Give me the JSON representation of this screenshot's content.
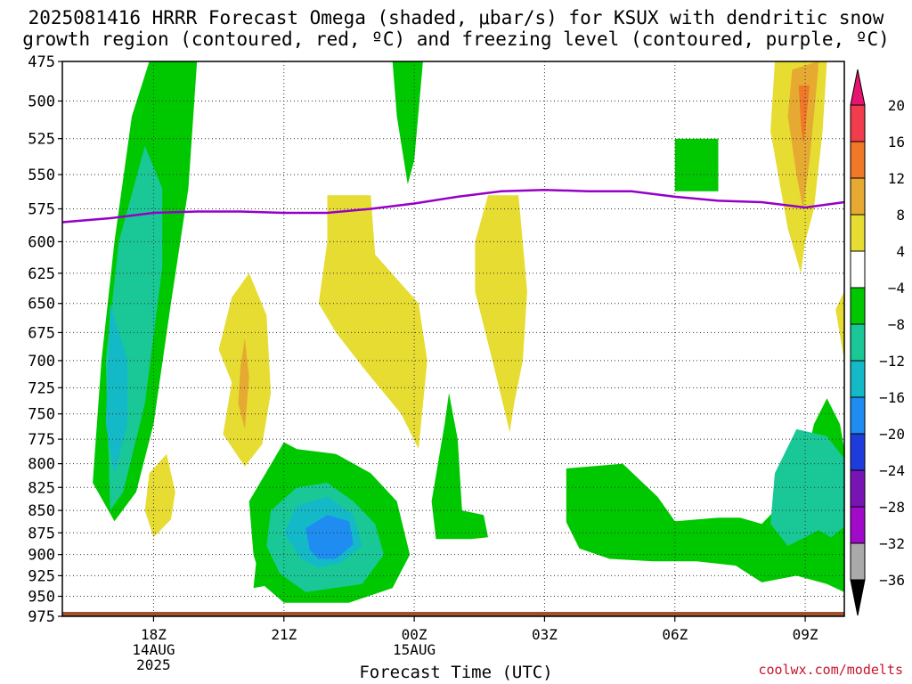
{
  "header": {
    "title_line1": "2025081416 HRRR Forecast Omega (shaded, μbar/s) for KSUX with dendritic snow",
    "title_line2": "growth region (contoured, red, ºC) and freezing level (contoured, purple, ºC)"
  },
  "footer": {
    "credit": "coolwx.com/modelts"
  },
  "chart_data": {
    "type": "heatmap",
    "xlabel": "Forecast Time (UTC)",
    "ylabel": "",
    "x_ticks": [
      {
        "hour": 2,
        "lines": [
          "18Z",
          "14AUG",
          "2025"
        ]
      },
      {
        "hour": 5,
        "lines": [
          "21Z"
        ]
      },
      {
        "hour": 8,
        "lines": [
          "00Z",
          "15AUG"
        ]
      },
      {
        "hour": 11,
        "lines": [
          "03Z"
        ]
      },
      {
        "hour": 14,
        "lines": [
          "06Z"
        ]
      },
      {
        "hour": 17,
        "lines": [
          "09Z"
        ]
      }
    ],
    "xlim": [
      -0.1,
      17.9
    ],
    "ylim_hPa": [
      975,
      475
    ],
    "y_ticks": [
      "475",
      "500",
      "525",
      "550",
      "575",
      "600",
      "625",
      "650",
      "675",
      "700",
      "725",
      "750",
      "775",
      "800",
      "825",
      "850",
      "875",
      "900",
      "925",
      "950",
      "975"
    ],
    "grid": true,
    "colorbar": {
      "labels": [
        "20",
        "16",
        "12",
        "8",
        "4",
        "−4",
        "−8",
        "−12",
        "−16",
        "−20",
        "−24",
        "−28",
        "−32",
        "−36"
      ],
      "colors": [
        "#f03c4c",
        "#f07828",
        "#e6aa32",
        "#e6dc32",
        "#ffffff",
        "#00c800",
        "#19c896",
        "#14b9c8",
        "#1e8cf0",
        "#1e3cdc",
        "#7814b4",
        "#a00ac8",
        "#aaaaaa"
      ],
      "top_arrow_color": "#e6146e",
      "bottom_arrow_color": "#000000"
    },
    "freezing_level": {
      "color": "#9600c8",
      "points": [
        [
          -0.1,
          585
        ],
        [
          1,
          582
        ],
        [
          2,
          578
        ],
        [
          3,
          577
        ],
        [
          4,
          577
        ],
        [
          5,
          578
        ],
        [
          6,
          578
        ],
        [
          7,
          575
        ],
        [
          8,
          571
        ],
        [
          9,
          566
        ],
        [
          10,
          562
        ],
        [
          11,
          561
        ],
        [
          12,
          562
        ],
        [
          13,
          562
        ],
        [
          14,
          566
        ],
        [
          15,
          569
        ],
        [
          16,
          570
        ],
        [
          17,
          574
        ],
        [
          17.9,
          570
        ]
      ]
    },
    "ground_color": "#a0522d",
    "regions": [
      {
        "color": "#00c800",
        "points": [
          [
            1.9,
            475
          ],
          [
            3,
            475
          ],
          [
            2.8,
            560
          ],
          [
            2.4,
            650
          ],
          [
            2,
            760
          ],
          [
            1.6,
            830
          ],
          [
            1.1,
            862
          ],
          [
            0.6,
            820
          ],
          [
            0.8,
            700
          ],
          [
            1.1,
            600
          ],
          [
            1.5,
            510
          ]
        ]
      },
      {
        "color": "#19c896",
        "points": [
          [
            1.8,
            530
          ],
          [
            2.2,
            560
          ],
          [
            2.2,
            620
          ],
          [
            1.8,
            740
          ],
          [
            1.3,
            830
          ],
          [
            1.0,
            850
          ],
          [
            0.9,
            700
          ],
          [
            1.2,
            600
          ]
        ]
      },
      {
        "color": "#14b9c8",
        "points": [
          [
            1.0,
            650
          ],
          [
            1.4,
            700
          ],
          [
            1.4,
            760
          ],
          [
            1.1,
            810
          ],
          [
            0.9,
            760
          ]
        ]
      },
      {
        "color": "#00c800",
        "points": [
          [
            7.5,
            475
          ],
          [
            8.2,
            475
          ],
          [
            8.0,
            540
          ],
          [
            7.85,
            557
          ],
          [
            7.6,
            510
          ]
        ]
      },
      {
        "color": "#00c800",
        "points": [
          [
            14,
            525
          ],
          [
            15,
            525
          ],
          [
            15,
            562
          ],
          [
            14,
            562
          ]
        ]
      },
      {
        "color": "#00c800",
        "points": [
          [
            4.4,
            890
          ],
          [
            5.5,
            905
          ],
          [
            4.8,
            935
          ],
          [
            4.3,
            940
          ]
        ]
      },
      {
        "color": "#00c800",
        "points": [
          [
            4.5,
            935
          ],
          [
            4.3,
            900
          ],
          [
            4.2,
            840
          ],
          [
            5,
            778
          ],
          [
            5.3,
            785
          ],
          [
            6.2,
            790
          ],
          [
            7,
            810
          ],
          [
            7.6,
            840
          ],
          [
            7.9,
            900
          ],
          [
            7.5,
            940
          ],
          [
            6.5,
            958
          ],
          [
            5,
            958
          ]
        ]
      },
      {
        "color": "#19c896",
        "points": [
          [
            4.9,
            922
          ],
          [
            4.6,
            890
          ],
          [
            4.7,
            850
          ],
          [
            5.3,
            825
          ],
          [
            6,
            820
          ],
          [
            6.6,
            840
          ],
          [
            7.1,
            865
          ],
          [
            7.3,
            900
          ],
          [
            6.8,
            935
          ],
          [
            5.5,
            945
          ]
        ]
      },
      {
        "color": "#14b9c8",
        "points": [
          [
            5.4,
            905
          ],
          [
            5.0,
            875
          ],
          [
            5.3,
            845
          ],
          [
            6,
            835
          ],
          [
            6.6,
            855
          ],
          [
            6.8,
            890
          ],
          [
            6.3,
            910
          ],
          [
            5.8,
            915
          ]
        ]
      },
      {
        "color": "#1e8cf0",
        "points": [
          [
            5.6,
            895
          ],
          [
            5.5,
            870
          ],
          [
            6,
            855
          ],
          [
            6.5,
            862
          ],
          [
            6.6,
            888
          ],
          [
            6.2,
            905
          ],
          [
            5.8,
            905
          ]
        ]
      },
      {
        "color": "#00c800",
        "points": [
          [
            8.8,
            730
          ],
          [
            9,
            775
          ],
          [
            9.1,
            850
          ],
          [
            9.6,
            855
          ],
          [
            9.7,
            880
          ],
          [
            9.3,
            882
          ],
          [
            8.5,
            882
          ],
          [
            8.4,
            840
          ],
          [
            8.7,
            760
          ]
        ]
      },
      {
        "color": "#00c800",
        "points": [
          [
            11.5,
            805
          ],
          [
            12.8,
            800
          ],
          [
            13.6,
            835
          ],
          [
            14,
            862
          ],
          [
            14.5,
            860
          ],
          [
            15,
            858
          ],
          [
            15.5,
            858
          ],
          [
            16,
            865
          ],
          [
            16.5,
            840
          ],
          [
            17,
            800
          ],
          [
            17.2,
            760
          ],
          [
            17.5,
            735
          ],
          [
            17.8,
            760
          ],
          [
            17.9,
            785
          ],
          [
            17.9,
            945
          ],
          [
            17.5,
            935
          ],
          [
            16.8,
            925
          ],
          [
            16,
            933
          ],
          [
            15.4,
            913
          ],
          [
            14.5,
            908
          ],
          [
            13.5,
            908
          ],
          [
            12.5,
            905
          ],
          [
            11.8,
            893
          ],
          [
            11.5,
            863
          ]
        ]
      },
      {
        "color": "#19c896",
        "points": [
          [
            16.8,
            765
          ],
          [
            17.5,
            772
          ],
          [
            17.9,
            795
          ],
          [
            17.9,
            868
          ],
          [
            17.6,
            880
          ],
          [
            17.3,
            872
          ],
          [
            17,
            880
          ],
          [
            16.6,
            890
          ],
          [
            16.2,
            865
          ],
          [
            16.3,
            810
          ]
        ]
      },
      {
        "color": "#e6dc32",
        "points": [
          [
            6,
            565
          ],
          [
            7,
            565
          ],
          [
            7.1,
            610
          ],
          [
            8.1,
            650
          ],
          [
            8.3,
            700
          ],
          [
            8.1,
            785
          ],
          [
            7.7,
            750
          ],
          [
            6.9,
            710
          ],
          [
            6.2,
            675
          ],
          [
            5.8,
            650
          ],
          [
            6,
            600
          ]
        ]
      },
      {
        "color": "#e6dc32",
        "points": [
          [
            3.8,
            720
          ],
          [
            3.5,
            690
          ],
          [
            3.8,
            645
          ],
          [
            4.2,
            625
          ],
          [
            4.6,
            660
          ],
          [
            4.7,
            730
          ],
          [
            4.5,
            780
          ],
          [
            4.1,
            803
          ],
          [
            3.6,
            770
          ]
        ]
      },
      {
        "color": "#e6aa32",
        "points": [
          [
            4.0,
            705
          ],
          [
            4.1,
            680
          ],
          [
            4.2,
            715
          ],
          [
            4.1,
            765
          ],
          [
            3.95,
            740
          ]
        ]
      },
      {
        "color": "#e6dc32",
        "points": [
          [
            9.7,
            565
          ],
          [
            10.4,
            565
          ],
          [
            10.6,
            640
          ],
          [
            10.5,
            700
          ],
          [
            10.3,
            740
          ],
          [
            10.2,
            768
          ],
          [
            9.8,
            700
          ],
          [
            9.4,
            640
          ],
          [
            9.4,
            600
          ]
        ]
      },
      {
        "color": "#e6dc32",
        "points": [
          [
            1.9,
            810
          ],
          [
            2.3,
            790
          ],
          [
            2.5,
            830
          ],
          [
            2.4,
            860
          ],
          [
            2.0,
            880
          ],
          [
            1.8,
            850
          ]
        ]
      },
      {
        "color": "#e6dc32",
        "points": [
          [
            16.3,
            475
          ],
          [
            17.5,
            475
          ],
          [
            17.4,
            520
          ],
          [
            17.2,
            575
          ],
          [
            17.0,
            600
          ],
          [
            16.9,
            625
          ],
          [
            16.6,
            590
          ],
          [
            16.2,
            520
          ]
        ]
      },
      {
        "color": "#e6aa32",
        "points": [
          [
            16.7,
            480
          ],
          [
            17.3,
            475
          ],
          [
            17.3,
            480
          ],
          [
            17.1,
            540
          ],
          [
            16.95,
            575
          ],
          [
            16.8,
            550
          ],
          [
            16.6,
            510
          ]
        ]
      },
      {
        "color": "#f07828",
        "points": [
          [
            16.85,
            490
          ],
          [
            17.1,
            490
          ],
          [
            17.0,
            520
          ],
          [
            16.95,
            528
          ],
          [
            16.9,
            515
          ]
        ]
      },
      {
        "color": "#e6dc32",
        "points": [
          [
            17.9,
            640
          ],
          [
            17.7,
            655
          ],
          [
            17.9,
            700
          ]
        ]
      }
    ]
  }
}
